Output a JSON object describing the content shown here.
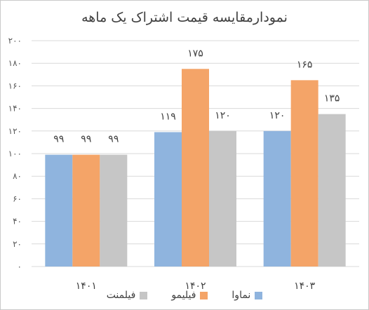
{
  "chart_data": {
    "type": "bar",
    "title": "نمودارمقایسه قیمت اشتراک یک ماهه",
    "categories": [
      "۱۴۰۱",
      "۱۴۰۲",
      "۱۴۰۳"
    ],
    "series": [
      {
        "name": "نماوا",
        "color": "#8fb4de",
        "values": [
          99,
          119,
          120
        ],
        "labels": [
          "۹۹",
          "۱۱۹",
          "۱۲۰"
        ]
      },
      {
        "name": "فیلیمو",
        "color": "#f4a468",
        "values": [
          99,
          175,
          165
        ],
        "labels": [
          "۹۹",
          "۱۷۵",
          "۱۶۵"
        ]
      },
      {
        "name": "فیلمنت",
        "color": "#c6c6c6",
        "values": [
          99,
          120,
          135
        ],
        "labels": [
          "۹۹",
          "۱۲۰",
          "۱۳۵"
        ]
      }
    ],
    "ylim": [
      0,
      200
    ],
    "yticks": [
      0,
      20,
      40,
      60,
      80,
      100,
      120,
      140,
      160,
      180,
      200
    ],
    "ytick_labels": [
      "۰",
      "۲۰",
      "۴۰",
      "۶۰",
      "۸۰",
      "۱۰۰",
      "۱۲۰",
      "۱۴۰",
      "۱۶۰",
      "۱۸۰",
      "۲۰۰"
    ],
    "grid": true,
    "legend": "bottom"
  }
}
